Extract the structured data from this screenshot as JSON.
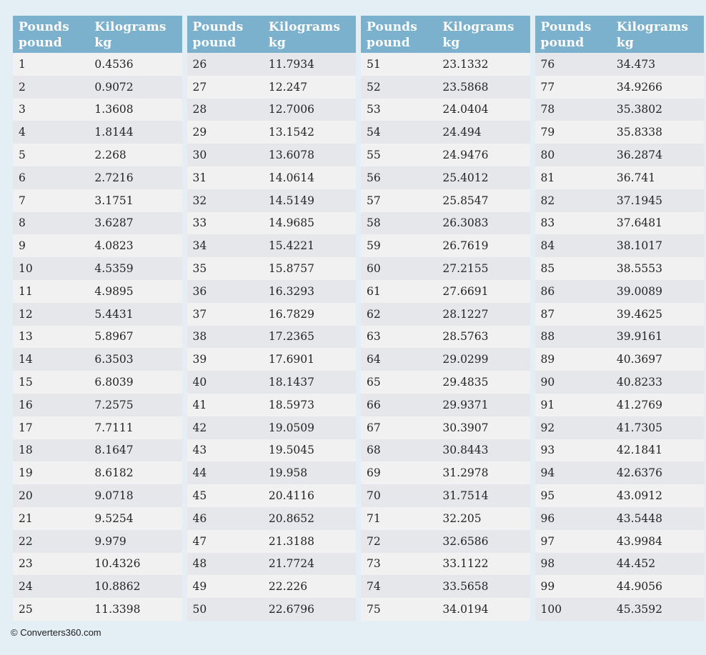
{
  "page": {
    "background": "#e3eef5",
    "accent_blue": "#7cb1cd",
    "row_light": "#f1f1f2",
    "row_dark": "#e6e7eb"
  },
  "header": {
    "pounds_line1": "Pounds",
    "pounds_line2": "pound",
    "kilograms_line1": "Kilograms",
    "kilograms_line2": "kg"
  },
  "footer": {
    "credit": "© Converters360.com"
  },
  "chart_data": {
    "type": "table",
    "title": "Pounds to Kilograms conversion table",
    "columns": [
      "Pounds pound",
      "Kilograms kg"
    ],
    "tables": [
      {
        "rows": [
          [
            "1",
            "0.4536"
          ],
          [
            "2",
            "0.9072"
          ],
          [
            "3",
            "1.3608"
          ],
          [
            "4",
            "1.8144"
          ],
          [
            "5",
            "2.268"
          ],
          [
            "6",
            "2.7216"
          ],
          [
            "7",
            "3.1751"
          ],
          [
            "8",
            "3.6287"
          ],
          [
            "9",
            "4.0823"
          ],
          [
            "10",
            "4.5359"
          ],
          [
            "11",
            "4.9895"
          ],
          [
            "12",
            "5.4431"
          ],
          [
            "13",
            "5.8967"
          ],
          [
            "14",
            "6.3503"
          ],
          [
            "15",
            "6.8039"
          ],
          [
            "16",
            "7.2575"
          ],
          [
            "17",
            "7.7111"
          ],
          [
            "18",
            "8.1647"
          ],
          [
            "19",
            "8.6182"
          ],
          [
            "20",
            "9.0718"
          ],
          [
            "21",
            "9.5254"
          ],
          [
            "22",
            "9.979"
          ],
          [
            "23",
            "10.4326"
          ],
          [
            "24",
            "10.8862"
          ],
          [
            "25",
            "11.3398"
          ]
        ]
      },
      {
        "rows": [
          [
            "26",
            "11.7934"
          ],
          [
            "27",
            "12.247"
          ],
          [
            "28",
            "12.7006"
          ],
          [
            "29",
            "13.1542"
          ],
          [
            "30",
            "13.6078"
          ],
          [
            "31",
            "14.0614"
          ],
          [
            "32",
            "14.5149"
          ],
          [
            "33",
            "14.9685"
          ],
          [
            "34",
            "15.4221"
          ],
          [
            "35",
            "15.8757"
          ],
          [
            "36",
            "16.3293"
          ],
          [
            "37",
            "16.7829"
          ],
          [
            "38",
            "17.2365"
          ],
          [
            "39",
            "17.6901"
          ],
          [
            "40",
            "18.1437"
          ],
          [
            "41",
            "18.5973"
          ],
          [
            "42",
            "19.0509"
          ],
          [
            "43",
            "19.5045"
          ],
          [
            "44",
            "19.958"
          ],
          [
            "45",
            "20.4116"
          ],
          [
            "46",
            "20.8652"
          ],
          [
            "47",
            "21.3188"
          ],
          [
            "48",
            "21.7724"
          ],
          [
            "49",
            "22.226"
          ],
          [
            "50",
            "22.6796"
          ]
        ]
      },
      {
        "rows": [
          [
            "51",
            "23.1332"
          ],
          [
            "52",
            "23.5868"
          ],
          [
            "53",
            "24.0404"
          ],
          [
            "54",
            "24.494"
          ],
          [
            "55",
            "24.9476"
          ],
          [
            "56",
            "25.4012"
          ],
          [
            "57",
            "25.8547"
          ],
          [
            "58",
            "26.3083"
          ],
          [
            "59",
            "26.7619"
          ],
          [
            "60",
            "27.2155"
          ],
          [
            "61",
            "27.6691"
          ],
          [
            "62",
            "28.1227"
          ],
          [
            "63",
            "28.5763"
          ],
          [
            "64",
            "29.0299"
          ],
          [
            "65",
            "29.4835"
          ],
          [
            "66",
            "29.9371"
          ],
          [
            "67",
            "30.3907"
          ],
          [
            "68",
            "30.8443"
          ],
          [
            "69",
            "31.2978"
          ],
          [
            "70",
            "31.7514"
          ],
          [
            "71",
            "32.205"
          ],
          [
            "72",
            "32.6586"
          ],
          [
            "73",
            "33.1122"
          ],
          [
            "74",
            "33.5658"
          ],
          [
            "75",
            "34.0194"
          ]
        ]
      },
      {
        "rows": [
          [
            "76",
            "34.473"
          ],
          [
            "77",
            "34.9266"
          ],
          [
            "78",
            "35.3802"
          ],
          [
            "79",
            "35.8338"
          ],
          [
            "80",
            "36.2874"
          ],
          [
            "81",
            "36.741"
          ],
          [
            "82",
            "37.1945"
          ],
          [
            "83",
            "37.6481"
          ],
          [
            "84",
            "38.1017"
          ],
          [
            "85",
            "38.5553"
          ],
          [
            "86",
            "39.0089"
          ],
          [
            "87",
            "39.4625"
          ],
          [
            "88",
            "39.9161"
          ],
          [
            "89",
            "40.3697"
          ],
          [
            "90",
            "40.8233"
          ],
          [
            "91",
            "41.2769"
          ],
          [
            "92",
            "41.7305"
          ],
          [
            "93",
            "42.1841"
          ],
          [
            "94",
            "42.6376"
          ],
          [
            "95",
            "43.0912"
          ],
          [
            "96",
            "43.5448"
          ],
          [
            "97",
            "43.9984"
          ],
          [
            "98",
            "44.452"
          ],
          [
            "99",
            "44.9056"
          ],
          [
            "100",
            "45.3592"
          ]
        ]
      }
    ]
  }
}
